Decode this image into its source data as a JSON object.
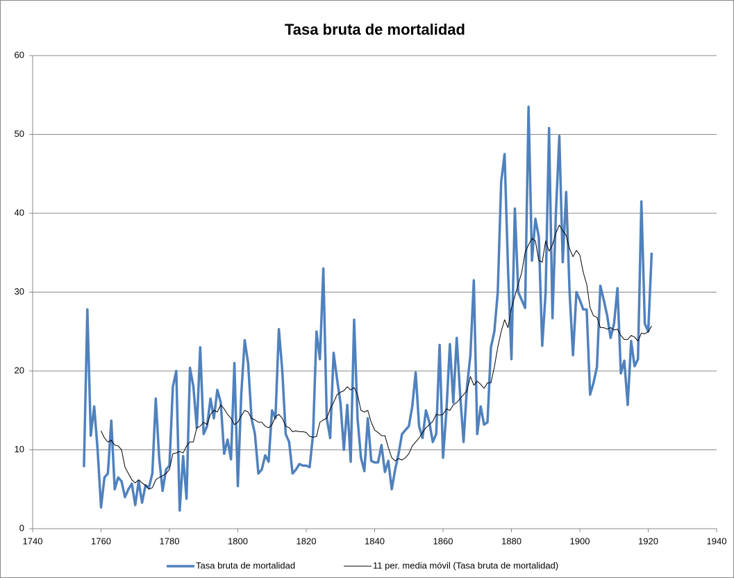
{
  "chart_data": {
    "type": "line",
    "title": "Tasa bruta de mortalidad",
    "x": [
      1755,
      1756,
      1757,
      1758,
      1759,
      1760,
      1761,
      1762,
      1763,
      1764,
      1765,
      1766,
      1767,
      1768,
      1769,
      1770,
      1771,
      1772,
      1773,
      1774,
      1775,
      1776,
      1777,
      1778,
      1779,
      1780,
      1781,
      1782,
      1783,
      1784,
      1785,
      1786,
      1787,
      1788,
      1789,
      1790,
      1791,
      1792,
      1793,
      1794,
      1795,
      1796,
      1797,
      1798,
      1799,
      1800,
      1801,
      1802,
      1803,
      1804,
      1805,
      1806,
      1807,
      1808,
      1809,
      1810,
      1811,
      1812,
      1813,
      1814,
      1815,
      1816,
      1817,
      1818,
      1819,
      1820,
      1821,
      1822,
      1823,
      1824,
      1825,
      1826,
      1827,
      1828,
      1829,
      1830,
      1831,
      1832,
      1833,
      1834,
      1835,
      1836,
      1837,
      1838,
      1839,
      1840,
      1841,
      1842,
      1843,
      1844,
      1845,
      1846,
      1847,
      1848,
      1849,
      1850,
      1851,
      1852,
      1853,
      1854,
      1855,
      1856,
      1857,
      1858,
      1859,
      1860,
      1861,
      1862,
      1863,
      1864,
      1865,
      1866,
      1867,
      1868,
      1869,
      1870,
      1871,
      1872,
      1873,
      1874,
      1875,
      1876,
      1877,
      1878,
      1879,
      1880,
      1881,
      1882,
      1883,
      1884,
      1885,
      1886,
      1887,
      1888,
      1889,
      1890,
      1891,
      1892,
      1893,
      1894,
      1895,
      1896,
      1897,
      1898,
      1899,
      1900,
      1901,
      1902,
      1903,
      1904,
      1905,
      1906,
      1907,
      1908,
      1909,
      1910,
      1911,
      1912,
      1913,
      1914,
      1915,
      1916,
      1917,
      1918,
      1919,
      1920,
      1921
    ],
    "series": [
      {
        "name": "Tasa bruta de mortalidad",
        "color": "#4f81bd",
        "width": 3.5,
        "values": [
          7.8,
          27.8,
          11.8,
          15.5,
          10,
          2.7,
          6.5,
          7,
          13.7,
          5,
          6.5,
          6,
          4,
          5,
          5.7,
          3,
          6,
          3.3,
          5.5,
          5.2,
          7,
          16.5,
          9,
          4.8,
          7.5,
          8,
          18,
          20,
          2.3,
          9.2,
          3.8,
          20.4,
          18,
          12.8,
          23,
          12,
          13,
          16.5,
          14,
          17.6,
          16,
          9.5,
          11.3,
          8.8,
          21,
          5.4,
          17,
          23.9,
          21,
          14,
          12,
          7,
          7.5,
          9.3,
          8.5,
          15,
          14,
          25.3,
          20,
          12,
          11,
          7,
          7.5,
          8.2,
          8,
          8,
          7.8,
          12,
          25,
          21.5,
          33,
          14,
          11.5,
          22.3,
          19,
          16,
          10,
          15.7,
          8.5,
          26.5,
          14,
          9,
          7.3,
          14,
          8.6,
          8.4,
          8.4,
          10.6,
          7.2,
          8.6,
          5,
          7.5,
          9.5,
          12,
          12.5,
          13,
          15.5,
          19.8,
          13,
          11.5,
          15,
          13.5,
          11,
          12,
          23.3,
          9,
          15,
          23.4,
          16,
          24.2,
          17,
          11,
          18,
          22,
          31.5,
          12,
          15.5,
          13.2,
          13.5,
          23,
          25,
          30,
          44,
          47.5,
          33,
          21.5,
          40.6,
          30,
          29,
          28,
          53.5,
          34,
          39.3,
          37,
          23.2,
          30,
          50.8,
          26.7,
          40,
          49.8,
          33.8,
          42.7,
          30,
          22,
          30,
          29,
          27.8,
          27.8,
          17,
          18.5,
          20.5,
          30.8,
          29,
          27,
          24.2,
          26,
          30.5,
          19.7,
          21.3,
          15.7,
          23.8,
          20.6,
          21.5,
          41.5,
          26,
          25,
          35
        ]
      },
      {
        "name": "11 per. media móvil (Tasa bruta de mortalidad)",
        "color": "#000000",
        "width": 1,
        "values": [
          null,
          null,
          null,
          null,
          null,
          12.4,
          11.5,
          11,
          11.2,
          10.6,
          10.5,
          10,
          7.8,
          7,
          6.2,
          5.8,
          6.2,
          5.8,
          5.5,
          5,
          5.2,
          6.2,
          6.5,
          6.7,
          7,
          7.5,
          9.5,
          9.6,
          9.8,
          9.6,
          10.5,
          11,
          11,
          12.8,
          13,
          13.5,
          13.2,
          14.5,
          15,
          14.8,
          15.7,
          15.2,
          14.5,
          14,
          13.2,
          13.5,
          14.3,
          15,
          14.8,
          14,
          13.8,
          13.5,
          13.5,
          13,
          12.8,
          13.2,
          14.2,
          14.5,
          14,
          13,
          12.8,
          12.3,
          12.4,
          12.3,
          12.3,
          12.2,
          11.7,
          11.6,
          11.7,
          13.5,
          13.8,
          14,
          15.2,
          16,
          17,
          17.3,
          17.5,
          18,
          17.6,
          17.9,
          17,
          15,
          14.8,
          15,
          13.5,
          12.5,
          12.2,
          11.8,
          11.8,
          10.3,
          9,
          8.6,
          8.9,
          8.7,
          9,
          9.5,
          10.5,
          11,
          11.5,
          12.2,
          12.8,
          13.2,
          13.6,
          14.5,
          14.4,
          14.5,
          15.2,
          15,
          15.7,
          16,
          16.5,
          17,
          17.5,
          19.3,
          18.2,
          18.7,
          18.3,
          17.8,
          18.5,
          18.5,
          20.5,
          23,
          25,
          26.5,
          25.5,
          28,
          29.5,
          31,
          32.5,
          35,
          36,
          36.8,
          36.5,
          34,
          33.8,
          36.5,
          35.2,
          36,
          37.5,
          38.5,
          37.8,
          37.2,
          35.5,
          34.5,
          35.3,
          34.7,
          32.5,
          31,
          28,
          27,
          26.8,
          25.5,
          25.5,
          25.3,
          25.5,
          25.2,
          25.3,
          24.5,
          24,
          24,
          24.5,
          24.3,
          23.8,
          24.8,
          24.7,
          25,
          25.7
        ]
      }
    ],
    "xlim": [
      1740,
      1940
    ],
    "xticks": [
      1740,
      1760,
      1780,
      1800,
      1820,
      1840,
      1860,
      1880,
      1900,
      1920,
      1940
    ],
    "ylim": [
      0,
      60
    ],
    "yticks": [
      0,
      10,
      20,
      30,
      40,
      50,
      60
    ],
    "grid": true,
    "legend": "bottom"
  }
}
